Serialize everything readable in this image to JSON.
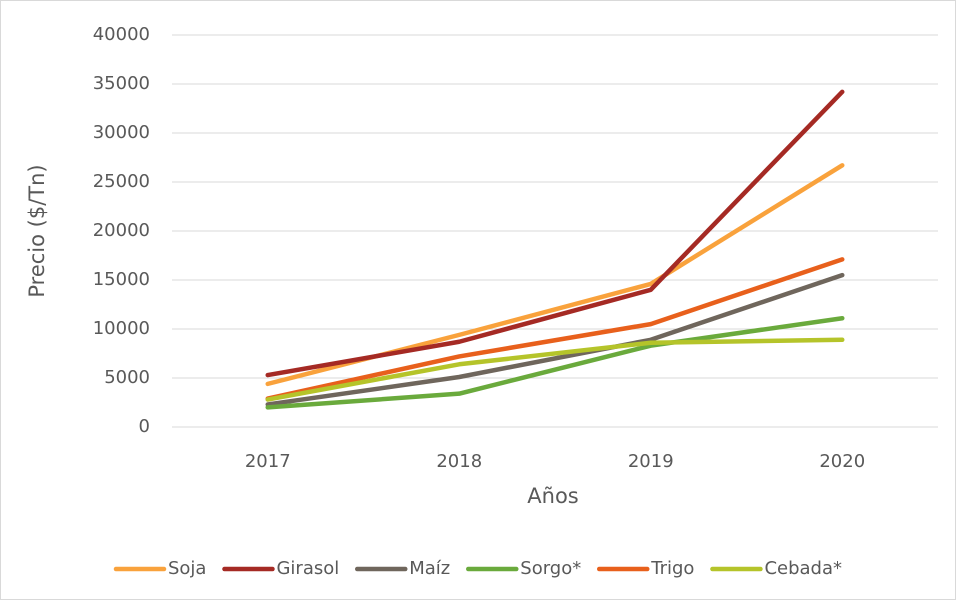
{
  "chart_data": {
    "type": "line",
    "x_label": "Años",
    "y_label": "Precio ($/Tn)",
    "categories": [
      "2017",
      "2018",
      "2019",
      "2020"
    ],
    "series": [
      {
        "name": "Soja",
        "color": "#f9a23c",
        "values": [
          4400,
          9400,
          14600,
          26700
        ]
      },
      {
        "name": "Girasol",
        "color": "#a52a24",
        "values": [
          5300,
          8700,
          14000,
          34200
        ]
      },
      {
        "name": "Maíz",
        "color": "#6f665c",
        "values": [
          2300,
          5100,
          8900,
          15500
        ]
      },
      {
        "name": "Sorgo*",
        "color": "#6aaa3c",
        "values": [
          2000,
          3400,
          8300,
          11100
        ]
      },
      {
        "name": "Trigo",
        "color": "#e8601c",
        "values": [
          2900,
          7200,
          10500,
          17100
        ]
      },
      {
        "name": "Cebada*",
        "color": "#b5c42a",
        "values": [
          2800,
          6400,
          8600,
          8900
        ]
      }
    ],
    "ylim": [
      0,
      40000
    ],
    "yticks": [
      0,
      5000,
      10000,
      15000,
      20000,
      25000,
      30000,
      35000,
      40000
    ],
    "grid": true,
    "legend": "bottom"
  }
}
